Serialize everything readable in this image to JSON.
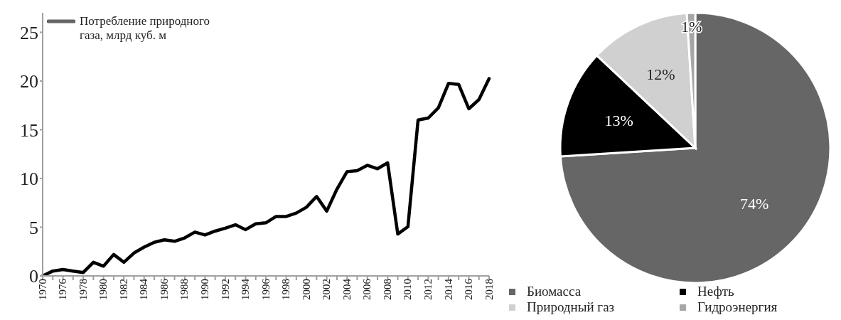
{
  "chart_data": [
    {
      "type": "line",
      "categories": [
        "1970",
        null,
        "1976",
        null,
        "1978",
        null,
        "1980",
        null,
        "1982",
        null,
        "1984",
        null,
        "1986",
        null,
        "1988",
        null,
        "1990",
        null,
        "1992",
        null,
        "1994",
        null,
        "1996",
        null,
        "1998",
        null,
        "2000",
        null,
        "2002",
        null,
        "2004",
        null,
        "2006",
        null,
        "2008",
        null,
        "2010",
        null,
        "2012",
        null,
        "2014",
        null,
        "2016",
        null,
        "2018"
      ],
      "series": [
        {
          "name": "Потребление природного газа, млрд куб. м",
          "color": "#000000",
          "values": [
            0.0,
            0.5,
            0.65,
            0.5,
            0.35,
            1.4,
            1.0,
            2.2,
            1.4,
            2.35,
            2.95,
            3.45,
            3.7,
            3.55,
            3.9,
            4.5,
            4.2,
            4.6,
            4.9,
            5.25,
            4.75,
            5.35,
            5.45,
            6.1,
            6.1,
            6.45,
            7.05,
            8.15,
            6.65,
            8.9,
            10.7,
            10.8,
            11.35,
            11.0,
            11.6,
            4.3,
            5.05,
            16.0,
            16.2,
            17.25,
            19.75,
            19.65,
            17.15,
            18.1,
            20.25
          ]
        }
      ],
      "ylim": [
        0,
        27
      ],
      "yticks": [
        0,
        5,
        10,
        15,
        20,
        25
      ],
      "grid": false,
      "legend": "top left",
      "marker": "none",
      "line_style": "solid"
    },
    {
      "type": "pie",
      "categories": [
        "Биомасса",
        "Нефть",
        "Природный газ",
        "Гидроэнергия"
      ],
      "values": [
        74,
        13,
        12,
        1
      ],
      "colors": [
        "#666666",
        "#000000",
        "#d0d0d0",
        "#a6a6a6"
      ],
      "value_labels": [
        "74%",
        "13%",
        "12%",
        "1%"
      ],
      "legend": "bottom"
    }
  ]
}
